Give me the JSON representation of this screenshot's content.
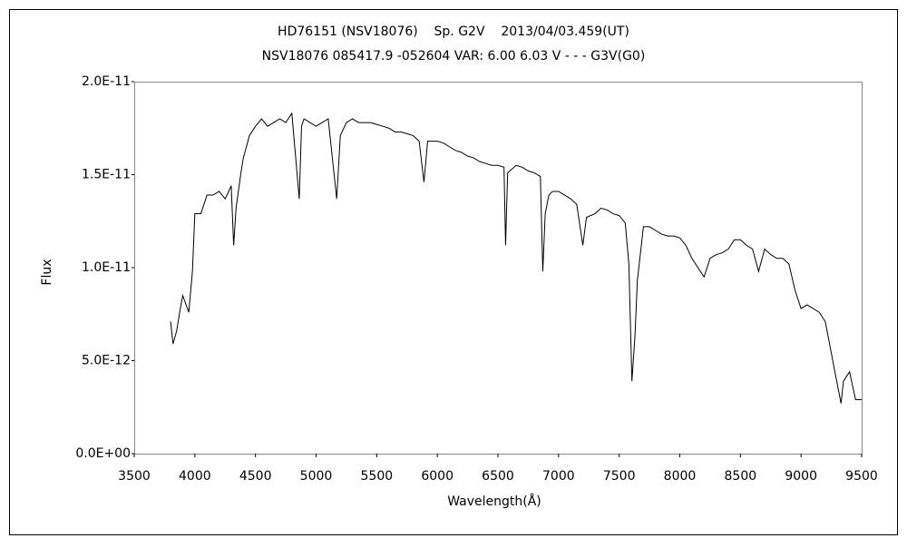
{
  "chart_data": {
    "type": "line",
    "title": "HD76151 (NSV18076)    Sp. G2V    2013/04/03.459(UT)",
    "subtitle": "NSV18076 085417.9 -052604 VAR: 6.00 6.03 V - - - G3V(G0)",
    "x_label": "Wavelength(Å)",
    "y_label": "Flux",
    "color": "#000000",
    "x": [
      3800,
      3820,
      3850,
      3880,
      3900,
      3950,
      3980,
      4000,
      4050,
      4100,
      4150,
      4200,
      4250,
      4300,
      4320,
      4340,
      4380,
      4400,
      4450,
      4500,
      4550,
      4600,
      4650,
      4700,
      4750,
      4800,
      4861,
      4880,
      4900,
      4950,
      5000,
      5050,
      5100,
      5170,
      5200,
      5250,
      5300,
      5350,
      5400,
      5450,
      5500,
      5550,
      5600,
      5650,
      5700,
      5750,
      5800,
      5850,
      5890,
      5920,
      5950,
      6000,
      6050,
      6100,
      6150,
      6200,
      6250,
      6300,
      6350,
      6400,
      6450,
      6500,
      6550,
      6563,
      6580,
      6650,
      6700,
      6750,
      6800,
      6850,
      6870,
      6890,
      6920,
      6950,
      7000,
      7050,
      7100,
      7150,
      7200,
      7230,
      7300,
      7350,
      7400,
      7450,
      7500,
      7550,
      7580,
      7605,
      7630,
      7650,
      7700,
      7750,
      7800,
      7850,
      7900,
      7950,
      8000,
      8050,
      8100,
      8150,
      8200,
      8250,
      8300,
      8350,
      8400,
      8450,
      8500,
      8550,
      8600,
      8650,
      8700,
      8750,
      8800,
      8850,
      8900,
      8950,
      9000,
      9050,
      9100,
      9150,
      9200,
      9250,
      9300,
      9330,
      9350,
      9400,
      9450,
      9500
    ],
    "values": [
      7.1e-12,
      5.9e-12,
      6.6e-12,
      7.8e-12,
      8.5e-12,
      7.6e-12,
      9.8e-12,
      1.29e-11,
      1.29e-11,
      1.39e-11,
      1.39e-11,
      1.41e-11,
      1.37e-11,
      1.44e-11,
      1.12e-11,
      1.32e-11,
      1.51e-11,
      1.59e-11,
      1.71e-11,
      1.76e-11,
      1.8e-11,
      1.76e-11,
      1.78e-11,
      1.8e-11,
      1.78e-11,
      1.83e-11,
      1.37e-11,
      1.76e-11,
      1.8e-11,
      1.78e-11,
      1.76e-11,
      1.78e-11,
      1.8e-11,
      1.37e-11,
      1.71e-11,
      1.78e-11,
      1.8e-11,
      1.78e-11,
      1.78e-11,
      1.78e-11,
      1.77e-11,
      1.76e-11,
      1.75e-11,
      1.73e-11,
      1.73e-11,
      1.72e-11,
      1.71e-11,
      1.68e-11,
      1.46e-11,
      1.68e-11,
      1.68e-11,
      1.68e-11,
      1.67e-11,
      1.65e-11,
      1.63e-11,
      1.62e-11,
      1.6e-11,
      1.59e-11,
      1.57e-11,
      1.56e-11,
      1.55e-11,
      1.55e-11,
      1.54e-11,
      1.12e-11,
      1.51e-11,
      1.55e-11,
      1.54e-11,
      1.52e-11,
      1.51e-11,
      1.49e-11,
      9.8e-12,
      1.29e-11,
      1.39e-11,
      1.41e-11,
      1.41e-11,
      1.39e-11,
      1.37e-11,
      1.34e-11,
      1.12e-11,
      1.27e-11,
      1.29e-11,
      1.32e-11,
      1.31e-11,
      1.29e-11,
      1.28e-11,
      1.24e-11,
      1.02e-11,
      3.9e-12,
      6.3e-12,
      9.3e-12,
      1.22e-11,
      1.22e-11,
      1.2e-11,
      1.18e-11,
      1.17e-11,
      1.17e-11,
      1.16e-11,
      1.12e-11,
      1.05e-11,
      1e-11,
      9.5e-12,
      1.05e-11,
      1.07e-11,
      1.08e-11,
      1.1e-11,
      1.15e-11,
      1.15e-11,
      1.12e-11,
      1.1e-11,
      9.8e-12,
      1.1e-11,
      1.07e-11,
      1.05e-11,
      1.05e-11,
      1.02e-11,
      8.8e-12,
      7.8e-12,
      8e-12,
      7.8e-12,
      7.6e-12,
      7.1e-12,
      5.4e-12,
      3.7e-12,
      2.7e-12,
      3.9e-12,
      4.4e-12,
      2.9e-12,
      2.9e-12
    ],
    "xlim": [
      3500,
      9500
    ],
    "xticks": [
      3500,
      4000,
      4500,
      5000,
      5500,
      6000,
      6500,
      7000,
      7500,
      8000,
      8500,
      9000,
      9500
    ],
    "ylim": [
      0,
      2e-11
    ],
    "yticks": [
      {
        "value": 0,
        "label": "0.0E+00"
      },
      {
        "value": 5e-12,
        "label": "5.0E-12"
      },
      {
        "value": 1e-11,
        "label": "1.0E-11"
      },
      {
        "value": 1.5e-11,
        "label": "1.5E-11"
      },
      {
        "value": 2e-11,
        "label": "2.0E-11"
      }
    ]
  }
}
